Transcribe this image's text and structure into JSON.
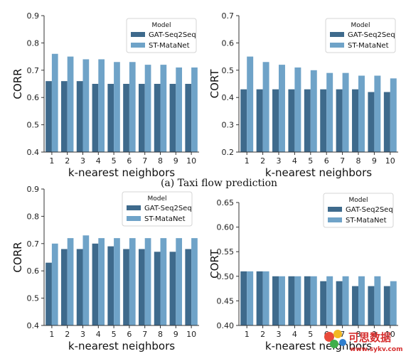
{
  "chart_data": [
    {
      "type": "bar",
      "ylabel": "CORR",
      "xlabel": "k-nearest neighbors",
      "categories": [
        "1",
        "2",
        "3",
        "4",
        "5",
        "6",
        "7",
        "8",
        "9",
        "10"
      ],
      "ylim": [
        0.4,
        0.9
      ],
      "yticks": [
        "0.4",
        "0.5",
        "0.6",
        "0.7",
        "0.8",
        "0.9"
      ],
      "legend": {
        "title": "Model",
        "placement": "top-right"
      },
      "series": [
        {
          "name": "GAT-Seq2Seq",
          "color": "#3e6a8c",
          "values": [
            0.66,
            0.66,
            0.66,
            0.65,
            0.65,
            0.65,
            0.65,
            0.65,
            0.65,
            0.65
          ]
        },
        {
          "name": "ST-MataNet",
          "color": "#6fa3c8",
          "values": [
            0.76,
            0.75,
            0.74,
            0.74,
            0.73,
            0.73,
            0.72,
            0.72,
            0.71,
            0.71
          ]
        }
      ]
    },
    {
      "type": "bar",
      "ylabel": "CORT",
      "xlabel": "k-nearest neighbors",
      "categories": [
        "1",
        "2",
        "3",
        "4",
        "5",
        "6",
        "7",
        "8",
        "9",
        "10"
      ],
      "ylim": [
        0.2,
        0.7
      ],
      "yticks": [
        "0.2",
        "0.3",
        "0.4",
        "0.5",
        "0.6",
        "0.7"
      ],
      "legend": {
        "title": "Model",
        "placement": "top-right"
      },
      "series": [
        {
          "name": "GAT-Seq2Seq",
          "color": "#3e6a8c",
          "values": [
            0.43,
            0.43,
            0.43,
            0.43,
            0.43,
            0.43,
            0.43,
            0.43,
            0.42,
            0.42
          ]
        },
        {
          "name": "ST-MataNet",
          "color": "#6fa3c8",
          "values": [
            0.55,
            0.53,
            0.52,
            0.51,
            0.5,
            0.49,
            0.49,
            0.48,
            0.48,
            0.47
          ]
        }
      ]
    },
    {
      "type": "bar",
      "ylabel": "CORR",
      "xlabel": "k-nearest neighbors",
      "categories": [
        "1",
        "2",
        "3",
        "4",
        "5",
        "6",
        "7",
        "8",
        "9",
        "10"
      ],
      "ylim": [
        0.4,
        0.9
      ],
      "yticks": [
        "0.4",
        "0.5",
        "0.6",
        "0.7",
        "0.8",
        "0.9"
      ],
      "legend": {
        "title": "Model",
        "placement": "top-right"
      },
      "series": [
        {
          "name": "GAT-Seq2Seq",
          "color": "#3e6a8c",
          "values": [
            0.63,
            0.68,
            0.68,
            0.7,
            0.69,
            0.68,
            0.68,
            0.67,
            0.67,
            0.68
          ]
        },
        {
          "name": "ST-MataNet",
          "color": "#6fa3c8",
          "values": [
            0.7,
            0.72,
            0.73,
            0.72,
            0.72,
            0.72,
            0.72,
            0.72,
            0.72,
            0.72
          ]
        }
      ]
    },
    {
      "type": "bar",
      "ylabel": "CORT",
      "xlabel": "k-nearest neighbors",
      "categories": [
        "1",
        "2",
        "3",
        "4",
        "5",
        "6",
        "7",
        "8",
        "9",
        "10"
      ],
      "ylim": [
        0.4,
        0.65
      ],
      "yticks": [
        "0.40",
        "0.45",
        "0.50",
        "0.55",
        "0.60",
        "0.65"
      ],
      "legend": {
        "title": "Model",
        "placement": "top-right"
      },
      "series": [
        {
          "name": "GAT-Seq2Seq",
          "color": "#3e6a8c",
          "values": [
            0.51,
            0.51,
            0.5,
            0.5,
            0.5,
            0.49,
            0.49,
            0.48,
            0.48,
            0.48
          ]
        },
        {
          "name": "ST-MataNet",
          "color": "#6fa3c8",
          "values": [
            0.51,
            0.51,
            0.5,
            0.5,
            0.5,
            0.5,
            0.5,
            0.5,
            0.5,
            0.49
          ]
        }
      ]
    }
  ],
  "caption": "(a) Taxi flow prediction",
  "watermark": {
    "text": "可思数据",
    "url": "www.sykv.com"
  }
}
